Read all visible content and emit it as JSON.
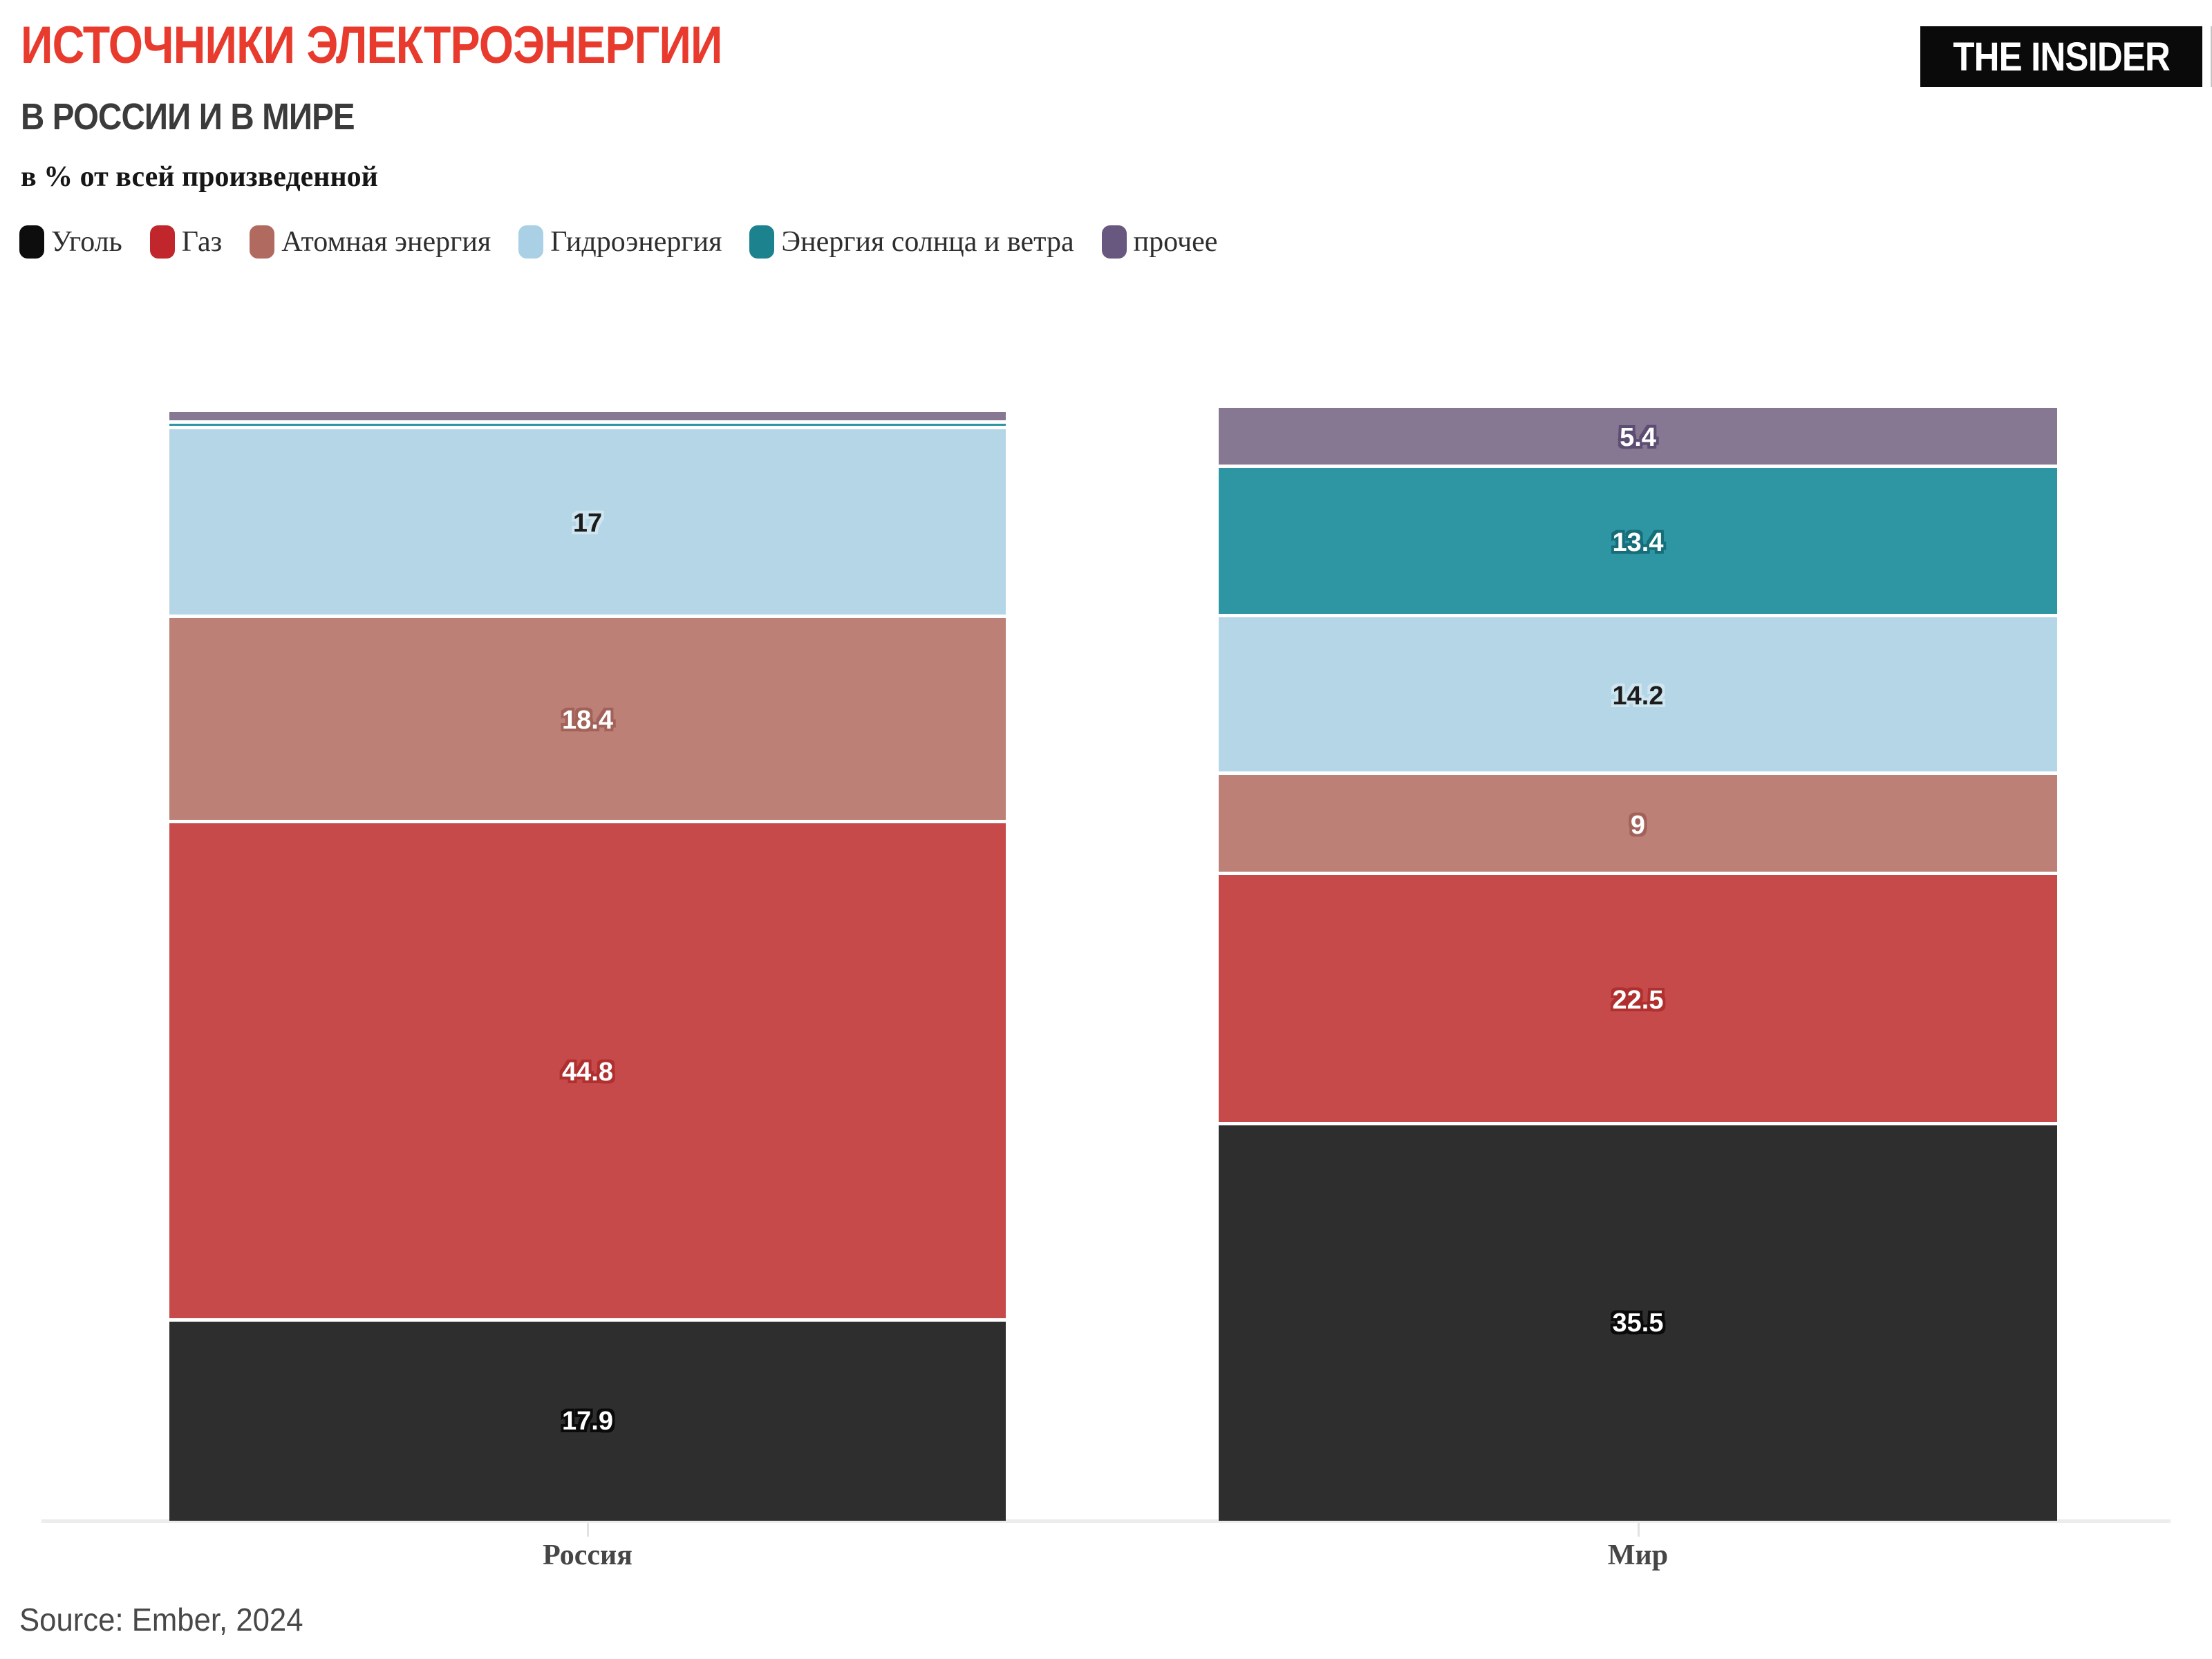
{
  "header": {
    "title": "ИСТОЧНИКИ ЭЛЕКТРОЭНЕРГИИ",
    "title_color": "#e83a2d",
    "subtitle": "В РОССИИ И В МИРЕ",
    "unit_note": "в % от всей произведенной"
  },
  "logo": {
    "text": "THE INSIDER"
  },
  "source": "Source: Ember, 2024",
  "chart_data": {
    "type": "bar",
    "stacked": true,
    "unit": "% от всей произведенной электроэнергии",
    "grid": false,
    "legend_position": "top",
    "ylim": [
      0,
      100
    ],
    "categories": [
      "Россия",
      "Мир"
    ],
    "series": [
      {
        "name": "Уголь",
        "legend_color": "#0d0d0d",
        "bar_color": "#2e2e2e",
        "label_color": "#ffffff",
        "halo_color": "#0a0a0a",
        "values": [
          17.9,
          35.5
        ],
        "labels": [
          "17.9",
          "35.5"
        ]
      },
      {
        "name": "Газ",
        "legend_color": "#c0262c",
        "bar_color": "#c74a4a",
        "label_color": "#ffffff",
        "halo_color": "#b02f2f",
        "values": [
          44.8,
          22.5
        ],
        "labels": [
          "44.8",
          "22.5"
        ]
      },
      {
        "name": "Атомная энергия",
        "legend_color": "#b16a60",
        "bar_color": "#bd8076",
        "label_color": "#ffffff",
        "halo_color": "#a2625a",
        "values": [
          18.4,
          9
        ],
        "labels": [
          "18.4",
          "9"
        ]
      },
      {
        "name": "Гидроэнергия",
        "legend_color": "#a9d0e4",
        "bar_color": "#b5d6e6",
        "label_color": "#1c1c1c",
        "halo_color": "#cfe6f1",
        "values": [
          17,
          14.2
        ],
        "labels": [
          "17",
          "14.2"
        ]
      },
      {
        "name": "Энергия солнца и ветра",
        "legend_color": "#1b828e",
        "bar_color": "#2e96a2",
        "label_color": "#ffffff",
        "halo_color": "#156e7a",
        "values": [
          0.5,
          13.4
        ],
        "labels": [
          "",
          "13.4"
        ]
      },
      {
        "name": "прочее",
        "legend_color": "#685880",
        "bar_color": "#867793",
        "label_color": "#ffffff",
        "halo_color": "#5c4e72",
        "values": [
          1.0,
          5.4
        ],
        "labels": [
          "",
          "5.4"
        ]
      }
    ]
  }
}
